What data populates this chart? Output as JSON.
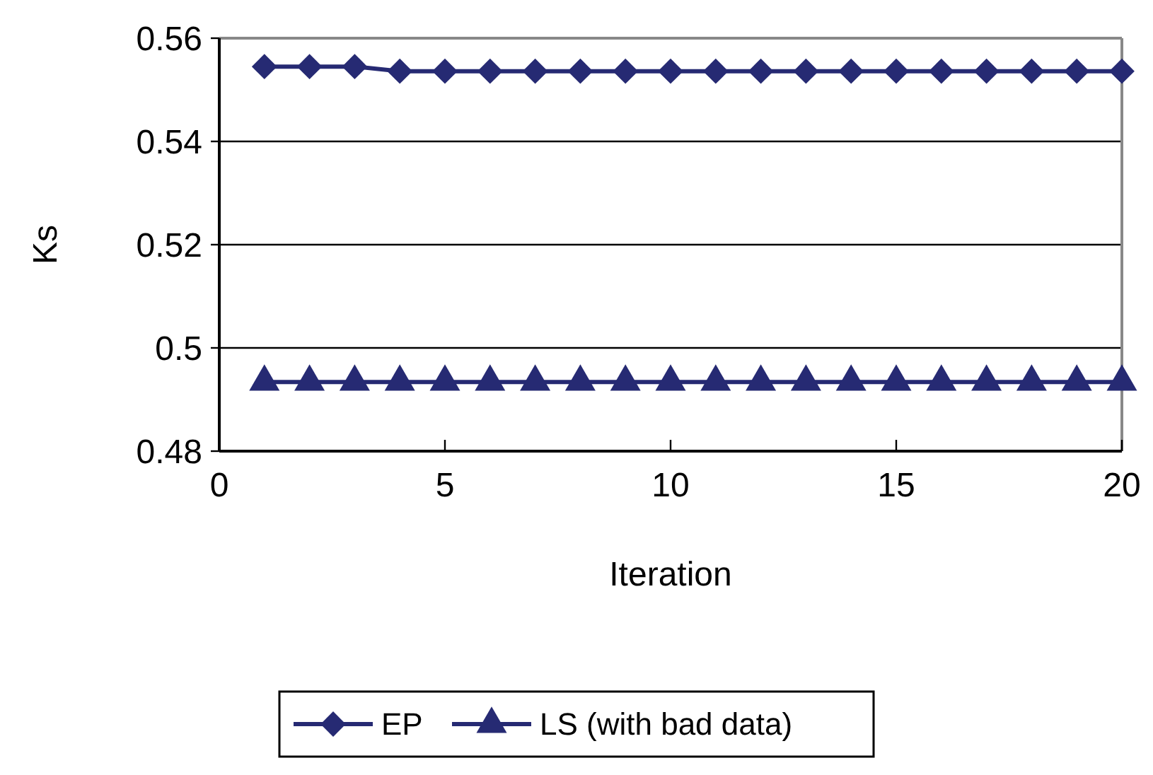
{
  "chart_data": {
    "type": "line",
    "xlabel": "Iteration",
    "ylabel": "Ks",
    "x": [
      1,
      2,
      3,
      4,
      5,
      6,
      7,
      8,
      9,
      10,
      11,
      12,
      13,
      14,
      15,
      16,
      17,
      18,
      19,
      20
    ],
    "series": [
      {
        "name": "EP",
        "color": "#262a73",
        "marker": "diamond",
        "values": [
          0.5545,
          0.5545,
          0.5545,
          0.5536,
          0.5536,
          0.5536,
          0.5536,
          0.5536,
          0.5536,
          0.5536,
          0.5536,
          0.5536,
          0.5536,
          0.5536,
          0.5536,
          0.5536,
          0.5536,
          0.5536,
          0.5536,
          0.5536
        ]
      },
      {
        "name": "LS (with bad data)",
        "color": "#262a73",
        "marker": "triangle",
        "values": [
          0.4934,
          0.4934,
          0.4934,
          0.4934,
          0.4934,
          0.4934,
          0.4934,
          0.4934,
          0.4934,
          0.4934,
          0.4934,
          0.4934,
          0.4934,
          0.4934,
          0.4934,
          0.4934,
          0.4934,
          0.4934,
          0.4934,
          0.4934
        ]
      }
    ],
    "xlim": [
      0,
      20
    ],
    "xticks": [
      0,
      5,
      10,
      15,
      20
    ],
    "ylim": [
      0.48,
      0.56
    ],
    "yticks": [
      {
        "value": 0.48,
        "label": "0.48"
      },
      {
        "value": 0.5,
        "label": "0.5"
      },
      {
        "value": 0.52,
        "label": "0.52"
      },
      {
        "value": 0.54,
        "label": "0.54"
      },
      {
        "value": 0.56,
        "label": "0.56"
      }
    ],
    "grid": "y",
    "legend": "bottom"
  }
}
